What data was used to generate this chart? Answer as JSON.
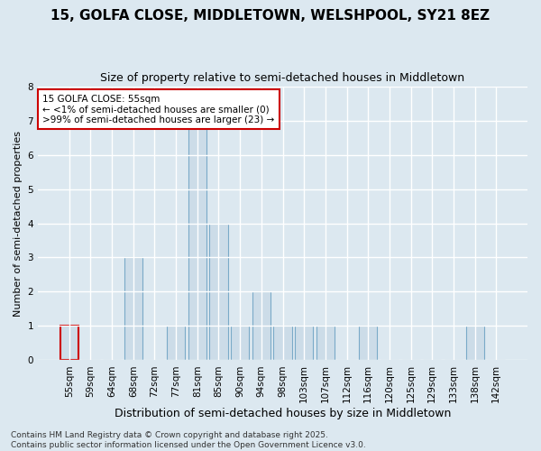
{
  "title": "15, GOLFA CLOSE, MIDDLETOWN, WELSHPOOL, SY21 8EZ",
  "subtitle": "Size of property relative to semi-detached houses in Middletown",
  "xlabel": "Distribution of semi-detached houses by size in Middletown",
  "ylabel": "Number of semi-detached properties",
  "categories": [
    "55sqm",
    "59sqm",
    "64sqm",
    "68sqm",
    "72sqm",
    "77sqm",
    "81sqm",
    "85sqm",
    "90sqm",
    "94sqm",
    "98sqm",
    "103sqm",
    "107sqm",
    "112sqm",
    "116sqm",
    "120sqm",
    "125sqm",
    "129sqm",
    "133sqm",
    "138sqm",
    "142sqm"
  ],
  "values": [
    1,
    0,
    0,
    3,
    0,
    1,
    7,
    4,
    1,
    2,
    1,
    1,
    1,
    0,
    1,
    0,
    0,
    0,
    0,
    1,
    0
  ],
  "highlight_index": 0,
  "bar_color": "#ccdce8",
  "bar_edge_color": "#7aaac8",
  "highlight_bar_edge_color": "#cc0000",
  "background_color": "#dce8f0",
  "grid_color": "#ffffff",
  "annotation_box_color": "#ffffff",
  "annotation_box_edge": "#cc0000",
  "annotation_text": "15 GOLFA CLOSE: 55sqm\n← <1% of semi-detached houses are smaller (0)\n>99% of semi-detached houses are larger (23) →",
  "footer": "Contains HM Land Registry data © Crown copyright and database right 2025.\nContains public sector information licensed under the Open Government Licence v3.0.",
  "ylim": [
    0,
    8
  ],
  "yticks": [
    0,
    1,
    2,
    3,
    4,
    5,
    6,
    7,
    8
  ],
  "title_fontsize": 11,
  "subtitle_fontsize": 9,
  "xlabel_fontsize": 9,
  "ylabel_fontsize": 8,
  "tick_fontsize": 7.5,
  "footer_fontsize": 6.5,
  "annotation_fontsize": 7.5
}
